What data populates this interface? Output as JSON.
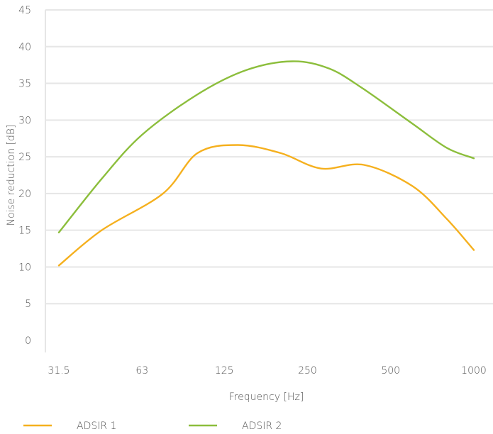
{
  "chart_data": {
    "type": "line",
    "title": "",
    "xlabel": "Frequency [Hz]",
    "ylabel": "Noise reduction [dB]",
    "x_scale": "log",
    "categories": [
      "31.5",
      "63",
      "125",
      "250",
      "500",
      "1000"
    ],
    "x": [
      31.5,
      63,
      125,
      250,
      500,
      1000
    ],
    "ylim": [
      0,
      45
    ],
    "yticks": [
      "0",
      "5",
      "10",
      "15",
      "20",
      "25",
      "30",
      "35",
      "40",
      "45"
    ],
    "grid": "horizontal",
    "legend_position": "bottom",
    "series": [
      {
        "name": "ADSIR 1",
        "color": "#f5b01e",
        "points": [
          [
            31.5,
            10.2
          ],
          [
            45,
            15.0
          ],
          [
            75,
            20.0
          ],
          [
            100,
            25.5
          ],
          [
            140,
            26.6
          ],
          [
            200,
            25.5
          ],
          [
            280,
            23.4
          ],
          [
            400,
            23.9
          ],
          [
            600,
            21.0
          ],
          [
            800,
            16.5
          ],
          [
            1000,
            12.3
          ]
        ]
      },
      {
        "name": "ADSIR 2",
        "color": "#8cbe3c",
        "points": [
          [
            31.5,
            14.7
          ],
          [
            45,
            22.0
          ],
          [
            63,
            28.0
          ],
          [
            100,
            33.5
          ],
          [
            150,
            36.8
          ],
          [
            220,
            38.0
          ],
          [
            300,
            37.0
          ],
          [
            400,
            34.2
          ],
          [
            600,
            29.5
          ],
          [
            800,
            26.2
          ],
          [
            1000,
            24.8
          ]
        ]
      }
    ]
  }
}
